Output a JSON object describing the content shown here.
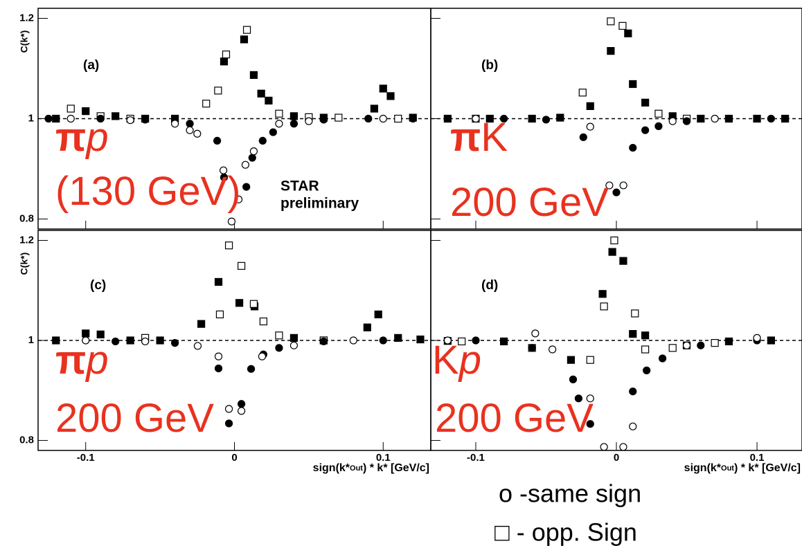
{
  "chart_data": [
    {
      "type": "scatter",
      "panel_label": "(a)",
      "label": [
        "π",
        "p"
      ],
      "label_italic": [
        false,
        true
      ],
      "label_bold": [
        true,
        false
      ],
      "energy": "(130 GeV)",
      "annotations": [
        "STAR",
        "preliminary"
      ],
      "ylabel": "C(k*)",
      "xlim": [
        -0.132,
        0.132
      ],
      "ylim": [
        0.78,
        1.22
      ],
      "xticks": [
        -0.1,
        0,
        0.1
      ],
      "yticks": [
        0.8,
        1,
        1.2
      ],
      "xtick_labels": false,
      "ytick_labels": true,
      "reference_line": 1,
      "series": [
        {
          "marker": "square",
          "filled": true,
          "x": [
            -0.12,
            -0.1,
            -0.08,
            -0.06,
            -0.04,
            -0.007,
            0.0065,
            0.013,
            0.018,
            0.023,
            0.04,
            0.06,
            0.094,
            0.1,
            0.105,
            0.12
          ],
          "values": [
            1.0,
            1.015,
            1.005,
            1.0,
            1.0,
            1.114,
            1.158,
            1.087,
            1.05,
            1.036,
            1.005,
            1.002,
            1.02,
            1.06,
            1.045,
            1.002
          ]
        },
        {
          "marker": "square",
          "filled": false,
          "x": [
            -0.11,
            -0.09,
            -0.07,
            -0.019,
            -0.011,
            -0.0056,
            0.0084,
            0.03,
            0.05,
            0.07,
            0.11
          ],
          "values": [
            1.02,
            1.005,
            1.0,
            1.03,
            1.056,
            1.128,
            1.177,
            1.01,
            1.003,
            1.002,
            1.0
          ]
        },
        {
          "marker": "circle",
          "filled": true,
          "x": [
            -0.125,
            -0.09,
            -0.06,
            -0.03,
            -0.0116,
            -0.007,
            0.008,
            0.012,
            0.019,
            0.026,
            0.04,
            0.06,
            0.09,
            0.12
          ],
          "values": [
            1.0,
            1.0,
            0.998,
            0.99,
            0.956,
            0.883,
            0.864,
            0.922,
            0.956,
            0.973,
            0.99,
            0.998,
            1.0,
            1.0
          ]
        },
        {
          "marker": "circle",
          "filled": false,
          "x": [
            -0.11,
            -0.07,
            -0.04,
            -0.025,
            -0.03,
            -0.0074,
            0.0028,
            -0.0019,
            0.0074,
            0.013,
            0.03,
            0.05,
            0.1
          ],
          "values": [
            1.0,
            0.997,
            0.99,
            0.97,
            0.977,
            0.897,
            0.839,
            0.795,
            0.908,
            0.935,
            0.99,
            0.995,
            1.0
          ]
        }
      ]
    },
    {
      "type": "scatter",
      "panel_label": "(b)",
      "label": [
        "π",
        "K"
      ],
      "label_italic": [
        false,
        false
      ],
      "label_bold": [
        true,
        false
      ],
      "energy": "200 GeV",
      "xlim": [
        -0.132,
        0.132
      ],
      "ylim": [
        0.78,
        1.22
      ],
      "xticks": [
        -0.1,
        0,
        0.1
      ],
      "yticks": [
        0.8,
        1,
        1.2
      ],
      "xtick_labels": false,
      "ytick_labels": false,
      "reference_line": 1,
      "series": [
        {
          "marker": "square",
          "filled": true,
          "x": [
            -0.12,
            -0.09,
            -0.06,
            -0.04,
            -0.0186,
            -0.004,
            0.0083,
            0.0117,
            0.0205,
            0.04,
            0.06,
            0.08,
            0.1,
            0.12
          ],
          "values": [
            1.0,
            1.0,
            1.0,
            1.002,
            1.025,
            1.135,
            1.17,
            1.069,
            1.032,
            1.005,
            1.0,
            1.0,
            1.0,
            1.0
          ]
        },
        {
          "marker": "square",
          "filled": false,
          "x": [
            -0.1,
            -0.024,
            -0.004,
            0.0044,
            0.03,
            0.05
          ],
          "values": [
            1.0,
            1.052,
            1.194,
            1.185,
            1.01,
            1.0
          ]
        },
        {
          "marker": "circle",
          "filled": true,
          "x": [
            -0.12,
            -0.08,
            -0.05,
            -0.0235,
            0.0,
            0.0117,
            0.0205,
            0.03,
            0.05,
            0.08,
            0.11
          ],
          "values": [
            1.0,
            1.0,
            0.998,
            0.963,
            0.853,
            0.942,
            0.977,
            0.985,
            0.995,
            1.0,
            1.0
          ]
        },
        {
          "marker": "circle",
          "filled": false,
          "x": [
            -0.1,
            -0.0186,
            -0.005,
            0.005,
            0.04,
            0.07
          ],
          "values": [
            1.0,
            0.984,
            0.867,
            0.867,
            0.995,
            1.0
          ]
        }
      ]
    },
    {
      "type": "scatter",
      "panel_label": "(c)",
      "label": [
        "π",
        "p"
      ],
      "label_italic": [
        false,
        true
      ],
      "label_bold": [
        true,
        false
      ],
      "energy": "200 GeV",
      "ylabel": "C(k*)",
      "xlabel": [
        "sign(k*",
        "Out",
        ") * k* [GeV/c]"
      ],
      "xlim": [
        -0.132,
        0.132
      ],
      "ylim": [
        0.78,
        1.22
      ],
      "xticks": [
        -0.1,
        0,
        0.1
      ],
      "yticks": [
        0.8,
        1,
        1.2
      ],
      "xtick_labels": true,
      "ytick_labels": true,
      "reference_line": 1,
      "series": [
        {
          "marker": "square",
          "filled": true,
          "x": [
            -0.12,
            -0.1,
            -0.09,
            -0.07,
            -0.05,
            -0.0223,
            -0.0107,
            0.0033,
            0.0135,
            0.04,
            0.06,
            0.0893,
            0.0967,
            0.11,
            0.125
          ],
          "values": [
            1.0,
            1.014,
            1.012,
            1.0,
            1.0,
            1.033,
            1.117,
            1.075,
            1.068,
            1.005,
            1.0,
            1.026,
            1.052,
            1.005,
            1.002
          ]
        },
        {
          "marker": "square",
          "filled": false,
          "x": [
            -0.06,
            -0.0098,
            -0.0037,
            0.0047,
            0.013,
            0.0195,
            0.03,
            0.06
          ],
          "values": [
            1.005,
            1.052,
            1.19,
            1.149,
            1.073,
            1.038,
            1.01,
            1.0
          ]
        },
        {
          "marker": "circle",
          "filled": true,
          "x": [
            -0.12,
            -0.08,
            -0.04,
            -0.0107,
            -0.0037,
            0.0047,
            0.0112,
            0.0195,
            0.03,
            0.06,
            0.1
          ],
          "values": [
            1.0,
            0.998,
            0.995,
            0.944,
            0.834,
            0.873,
            0.943,
            0.972,
            0.985,
            0.998,
            1.0
          ]
        },
        {
          "marker": "circle",
          "filled": false,
          "x": [
            -0.1,
            -0.06,
            -0.0247,
            -0.0107,
            -0.0037,
            0.0047,
            0.0186,
            0.04,
            0.08
          ],
          "values": [
            1.0,
            0.998,
            0.989,
            0.968,
            0.863,
            0.859,
            0.968,
            0.99,
            1.0
          ]
        }
      ]
    },
    {
      "type": "scatter",
      "panel_label": "(d)",
      "label": [
        "K",
        "p"
      ],
      "label_italic": [
        false,
        true
      ],
      "label_bold": [
        false,
        false
      ],
      "energy": "200 GeV",
      "xlabel": [
        "sign(k*",
        "Out",
        ") * k* [GeV/c]"
      ],
      "xlim": [
        -0.132,
        0.132
      ],
      "ylim": [
        0.78,
        1.22
      ],
      "xticks": [
        -0.1,
        0,
        0.1
      ],
      "yticks": [
        0.8,
        1,
        1.2
      ],
      "xtick_labels": true,
      "ytick_labels": false,
      "reference_line": 1,
      "series": [
        {
          "marker": "square",
          "filled": true,
          "x": [
            -0.12,
            -0.08,
            -0.0323,
            -0.0098,
            -0.0029,
            0.0049,
            0.0117,
            0.0205,
            0.05,
            0.08,
            0.11
          ],
          "values": [
            0.999,
            0.998,
            0.961,
            1.093,
            1.177,
            1.159,
            1.013,
            1.01,
            0.99,
            0.998,
            1.0
          ]
        },
        {
          "marker": "square",
          "filled": false,
          "x": [
            -0.11,
            -0.06,
            -0.0186,
            -0.0088,
            -0.0015,
            0.0132,
            0.0205,
            0.04,
            0.07
          ],
          "values": [
            0.998,
            0.985,
            0.961,
            1.068,
            1.2,
            1.054,
            0.982,
            0.985,
            0.995
          ]
        },
        {
          "marker": "circle",
          "filled": true,
          "x": [
            -0.1,
            -0.06,
            -0.0308,
            -0.0269,
            -0.0186,
            0.0117,
            0.0215,
            0.0328,
            0.06,
            0.1
          ],
          "values": [
            1.0,
            0.985,
            0.922,
            0.884,
            0.833,
            0.898,
            0.94,
            0.964,
            0.99,
            1.0
          ]
        },
        {
          "marker": "circle",
          "filled": false,
          "x": [
            -0.12,
            -0.0577,
            -0.0455,
            -0.0186,
            -0.0088,
            0.0049,
            0.0117,
            0.05,
            0.1
          ],
          "values": [
            1.0,
            1.014,
            0.982,
            0.884,
            0.787,
            0.787,
            0.828,
            0.99,
            1.005
          ]
        }
      ]
    }
  ],
  "legend": [
    "o -same sign",
    "□ - opp. Sign"
  ]
}
